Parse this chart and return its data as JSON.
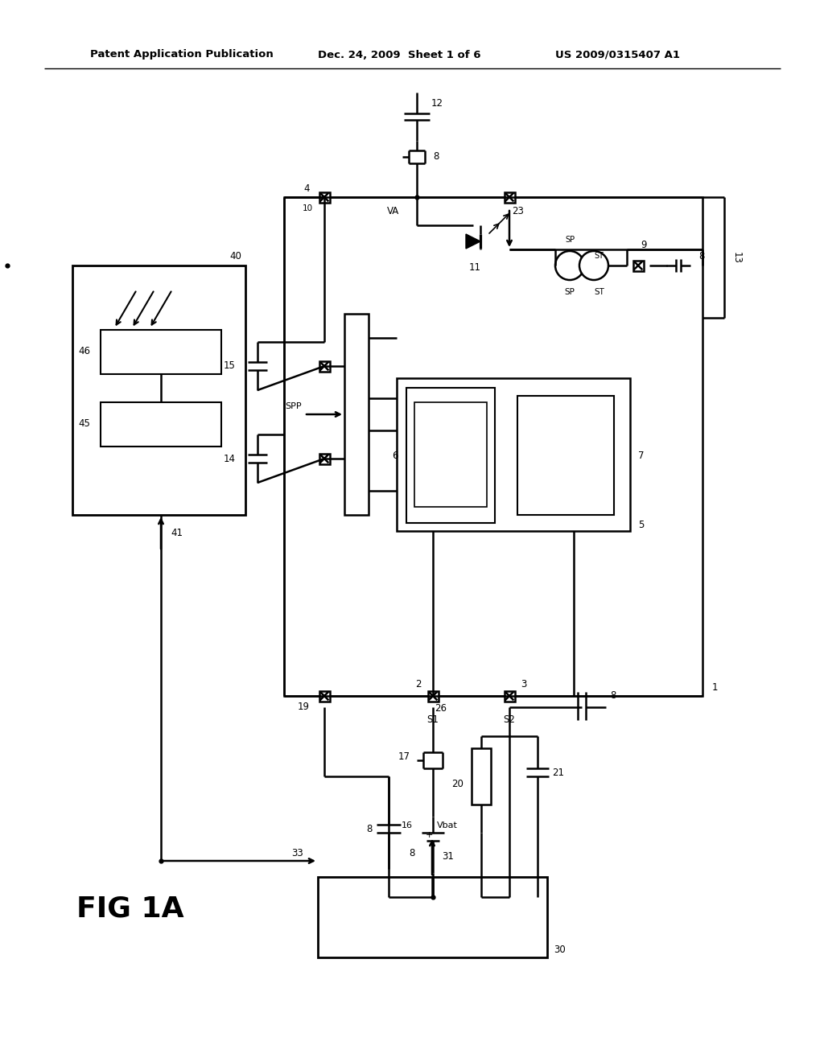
{
  "title_left": "Patent Application Publication",
  "title_mid": "Dec. 24, 2009  Sheet 1 of 6",
  "title_right": "US 2009/0315407 A1",
  "fig_label": "FIG 1A",
  "bg_color": "#ffffff",
  "line_color": "#000000",
  "lw": 1.8
}
